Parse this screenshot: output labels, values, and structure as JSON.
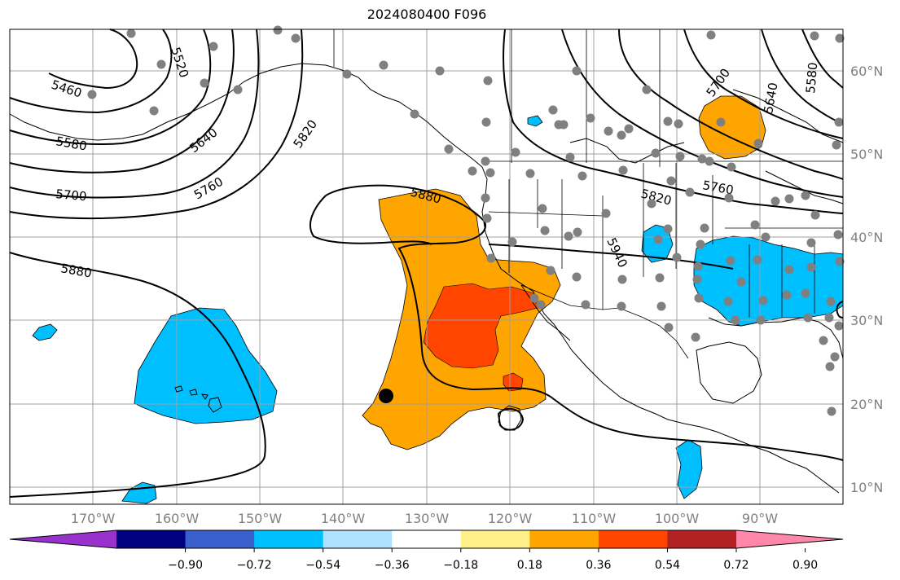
{
  "title": "2024080400 F096",
  "longitude_labels": [
    "170°W",
    "160°W",
    "150°W",
    "140°W",
    "130°W",
    "120°W",
    "110°W",
    "100°W",
    "90°W"
  ],
  "latitude_labels": [
    "60°N",
    "50°N",
    "40°N",
    "30°N",
    "20°N",
    "10°N"
  ],
  "contour_labels": [
    "5460",
    "5520",
    "5580",
    "5640",
    "5700",
    "5760",
    "5820",
    "5880",
    "5880",
    "5580",
    "5640",
    "5700",
    "5760",
    "5820",
    "5940"
  ],
  "colorbar": {
    "ticks": [
      "−0.90",
      "−0.72",
      "−0.54",
      "−0.36",
      "−0.18",
      "0.18",
      "0.36",
      "0.54",
      "0.72",
      "0.90"
    ],
    "colors": [
      "#9932cc",
      "#000080",
      "#3a5fcd",
      "#00bfff",
      "#b0e2ff",
      "#ffffff",
      "#fff08a",
      "#ffa500",
      "#ff4500",
      "#b22222",
      "#ff88aa"
    ]
  }
}
